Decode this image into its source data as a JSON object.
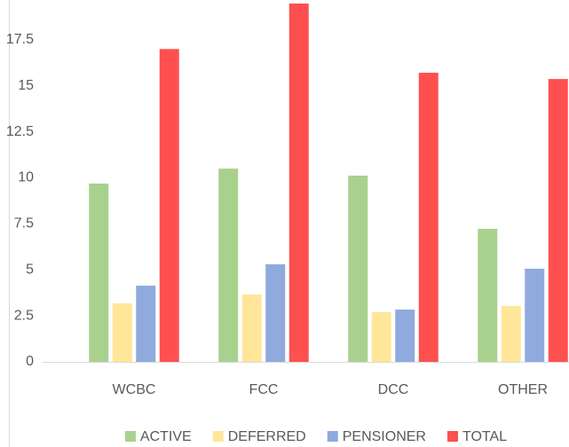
{
  "chart_data": {
    "type": "bar",
    "categories": [
      "WCBC",
      "FCC",
      "DCC",
      "OTHER"
    ],
    "series": [
      {
        "name": "ACTIVE",
        "color": "#a9d18e",
        "values": [
          9.69,
          10.5,
          10.12,
          7.23
        ]
      },
      {
        "name": "DEFERRED",
        "color": "#ffe699",
        "values": [
          3.18,
          3.66,
          2.7,
          3.04
        ]
      },
      {
        "name": "PENSIONER",
        "color": "#8faadc",
        "values": [
          4.14,
          5.3,
          2.84,
          5.06
        ]
      },
      {
        "name": "TOTAL",
        "color": "#ff5050",
        "values": [
          17.0,
          19.47,
          15.71,
          15.37
        ]
      }
    ],
    "ylim": [
      0,
      20
    ],
    "yticks": [
      0,
      2.5,
      5,
      7.5,
      10,
      12.5,
      15,
      17.5,
      20
    ],
    "grid": false,
    "legend": "bottom"
  }
}
